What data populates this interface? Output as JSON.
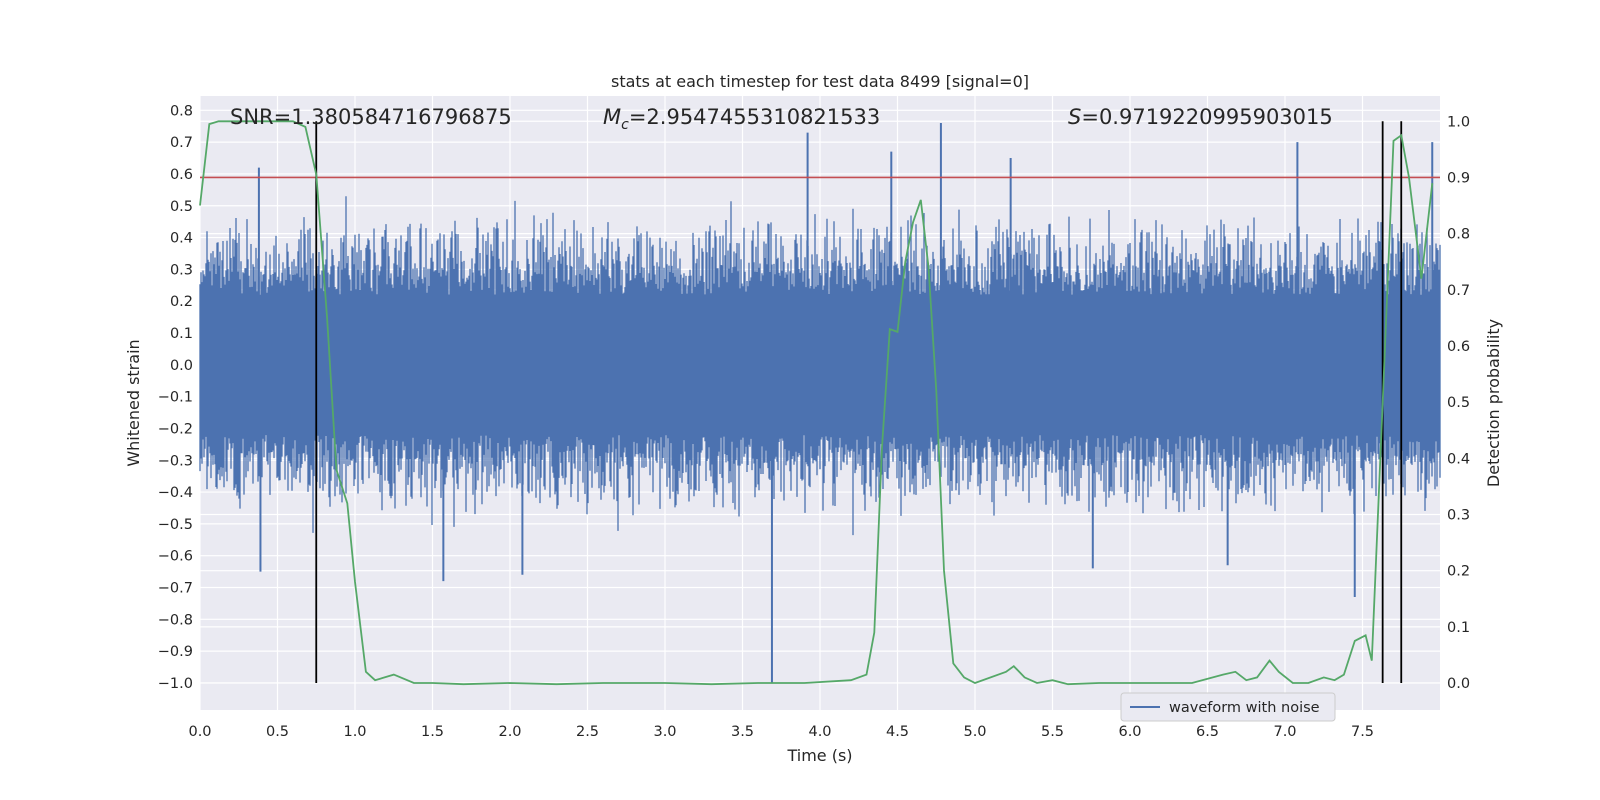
{
  "chart_data": {
    "type": "line",
    "title": "stats at each timestep for test data 8499 [signal=0]",
    "xlabel": "Time (s)",
    "ylabel_left": "Whitened strain",
    "ylabel_right": "Detection probability",
    "xlim": [
      0,
      8
    ],
    "ylim_left": [
      -1.085,
      0.845
    ],
    "ylim_right": [
      -0.048,
      1.045
    ],
    "x_ticks": [
      "0.0",
      "0.5",
      "1.0",
      "1.5",
      "2.0",
      "2.5",
      "3.0",
      "3.5",
      "4.0",
      "4.5",
      "5.0",
      "5.5",
      "6.0",
      "6.5",
      "7.0",
      "7.5"
    ],
    "x_tick_values": [
      0,
      0.5,
      1,
      1.5,
      2,
      2.5,
      3,
      3.5,
      4,
      4.5,
      5,
      5.5,
      6,
      6.5,
      7,
      7.5
    ],
    "y_ticks_left": [
      "0.8",
      "0.7",
      "0.6",
      "0.5",
      "0.4",
      "0.3",
      "0.2",
      "0.1",
      "0.0",
      "-0.1",
      "-0.2",
      "-0.3",
      "-0.4",
      "-0.5",
      "-0.6",
      "-0.7",
      "-0.8",
      "-0.9",
      "-1.0"
    ],
    "y_tick_values_left": [
      0.8,
      0.7,
      0.6,
      0.5,
      0.4,
      0.3,
      0.2,
      0.1,
      0,
      -0.1,
      -0.2,
      -0.3,
      -0.4,
      -0.5,
      -0.6,
      -0.7,
      -0.8,
      -0.9,
      -1.0
    ],
    "y_ticks_right": [
      "1.0",
      "0.9",
      "0.8",
      "0.7",
      "0.6",
      "0.5",
      "0.4",
      "0.3",
      "0.2",
      "0.1",
      "0.0"
    ],
    "y_tick_values_right": [
      1.0,
      0.9,
      0.8,
      0.7,
      0.6,
      0.5,
      0.4,
      0.3,
      0.2,
      0.1,
      0.0
    ],
    "grid": true,
    "annotations": {
      "snr": "SNR=1.380584716796875",
      "mc_symbol": "M",
      "mc_sub": "c",
      "mc_value": "=2.9547455310821533",
      "s_symbol": "S",
      "s_value": "=0.9719220995903015"
    },
    "legend": {
      "label": "waveform with noise",
      "placement": "lower-right"
    },
    "threshold_line": {
      "value": 0.9,
      "axis": "right",
      "color": "#c44e52"
    },
    "vertical_lines": [
      0.75,
      7.63,
      7.75
    ],
    "spikes": [
      [
        0.38,
        0.62
      ],
      [
        0.39,
        -0.65
      ],
      [
        1.57,
        -0.68
      ],
      [
        2.08,
        -0.66
      ],
      [
        3.69,
        -1.0
      ],
      [
        3.92,
        0.73
      ],
      [
        4.78,
        0.76
      ],
      [
        4.46,
        0.67
      ],
      [
        5.23,
        0.65
      ],
      [
        5.76,
        -0.64
      ],
      [
        6.63,
        -0.63
      ],
      [
        7.08,
        0.7
      ],
      [
        7.45,
        -0.73
      ],
      [
        7.95,
        0.7
      ]
    ],
    "series": [
      {
        "name": "waveform with noise",
        "axis": "left",
        "color": "#4c72b0",
        "style": "dense noise trace, ±0.22 core, envelope up to ±0.45, occasional spikes"
      },
      {
        "axis": "right",
        "color": "#55a868",
        "x": [
          0.0,
          0.06,
          0.12,
          0.2,
          0.3,
          0.4,
          0.5,
          0.6,
          0.68,
          0.75,
          0.82,
          0.88,
          0.95,
          1.0,
          1.07,
          1.13,
          1.25,
          1.38,
          1.5,
          1.7,
          2.0,
          2.3,
          2.6,
          3.0,
          3.3,
          3.6,
          3.9,
          4.2,
          4.3,
          4.35,
          4.4,
          4.45,
          4.5,
          4.55,
          4.6,
          4.65,
          4.7,
          4.75,
          4.8,
          4.86,
          4.93,
          5.0,
          5.2,
          5.25,
          5.32,
          5.4,
          5.5,
          5.6,
          5.8,
          6.1,
          6.4,
          6.6,
          6.68,
          6.75,
          6.82,
          6.9,
          6.96,
          7.05,
          7.15,
          7.25,
          7.32,
          7.38,
          7.45,
          7.52,
          7.56,
          7.63,
          7.7,
          7.75,
          7.8,
          7.88,
          7.95
        ],
        "y": [
          0.85,
          0.995,
          1.0,
          1.0,
          1.0,
          1.0,
          1.0,
          1.0,
          0.99,
          0.905,
          0.65,
          0.38,
          0.32,
          0.18,
          0.02,
          0.005,
          0.015,
          0.0,
          0.0,
          -0.002,
          0.0,
          -0.002,
          0.0,
          0.0,
          -0.002,
          0.0,
          0.0,
          0.005,
          0.015,
          0.09,
          0.42,
          0.63,
          0.625,
          0.75,
          0.82,
          0.86,
          0.74,
          0.52,
          0.2,
          0.035,
          0.01,
          0.0,
          0.02,
          0.03,
          0.01,
          0.0,
          0.005,
          -0.002,
          0.0,
          0.0,
          0.0,
          0.015,
          0.02,
          0.005,
          0.01,
          0.04,
          0.02,
          0.0,
          0.0,
          0.01,
          0.005,
          0.015,
          0.075,
          0.085,
          0.04,
          0.5,
          0.965,
          0.975,
          0.9,
          0.72,
          0.89
        ]
      }
    ]
  }
}
